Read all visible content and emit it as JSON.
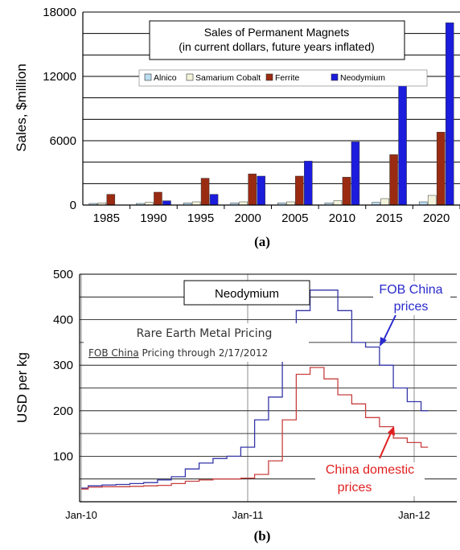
{
  "chart_data": [
    {
      "type": "bar",
      "title": "Sales of Permanent Magnets",
      "subtitle": "(in current dollars, future years inflated)",
      "ylabel": "Sales, $million",
      "xlabel": "",
      "caption": "(a)",
      "ylim": [
        0,
        18000
      ],
      "yticks": [
        "0",
        "6000",
        "12000",
        "18000"
      ],
      "categories": [
        "1985",
        "1990",
        "1995",
        "2000",
        "2005",
        "2010",
        "2015",
        "2020"
      ],
      "legend_position": "top",
      "grid": true,
      "series": [
        {
          "name": "Alnico",
          "color": "#bcdcf0",
          "values": [
            150,
            150,
            200,
            200,
            200,
            200,
            250,
            300
          ]
        },
        {
          "name": "Samarium Cobalt",
          "color": "#f4f4dc",
          "values": [
            200,
            250,
            300,
            300,
            300,
            400,
            600,
            900
          ]
        },
        {
          "name": "Ferrite",
          "color": "#9a2b12",
          "values": [
            1000,
            1200,
            2500,
            2900,
            2700,
            2600,
            4700,
            6800
          ]
        },
        {
          "name": "Neodymium",
          "color": "#1c1cdc",
          "values": [
            0,
            400,
            1000,
            2700,
            4100,
            5900,
            11800,
            17000
          ]
        }
      ]
    },
    {
      "type": "line",
      "caption": "(b)",
      "ylabel": "USD per kg",
      "ylim": [
        0,
        500
      ],
      "yticks": [
        "100",
        "200",
        "300",
        "400",
        "500"
      ],
      "xticks": [
        "Jan-10",
        "Jan-11",
        "Jan-12"
      ],
      "grid": true,
      "box_label": "Neodymium",
      "title": "Rare Earth Metal Pricing",
      "subtitle_link": "FOB China",
      "subtitle_rest": " Pricing through 2/17/2012",
      "series": [
        {
          "name_line1": "FOB China",
          "name_line2": "prices",
          "color": "#3535a8",
          "label_color": "#2a2acc",
          "x": [
            "2010-01",
            "2010-02",
            "2010-03",
            "2010-04",
            "2010-05",
            "2010-06",
            "2010-07",
            "2010-08",
            "2010-09",
            "2010-10",
            "2010-11",
            "2010-12",
            "2011-01",
            "2011-02",
            "2011-03",
            "2011-04",
            "2011-05",
            "2011-06",
            "2011-07",
            "2011-08",
            "2011-09",
            "2011-10",
            "2011-11",
            "2011-12",
            "2012-01",
            "2012-02"
          ],
          "y": [
            30,
            35,
            37,
            38,
            40,
            42,
            48,
            55,
            72,
            85,
            95,
            100,
            120,
            180,
            230,
            310,
            420,
            465,
            465,
            420,
            350,
            340,
            300,
            250,
            220,
            200
          ]
        },
        {
          "name_line1": "China domestic",
          "name_line2": "prices",
          "color": "#c84040",
          "label_color": "#e02020",
          "x": [
            "2010-01",
            "2010-02",
            "2010-03",
            "2010-04",
            "2010-05",
            "2010-06",
            "2010-07",
            "2010-08",
            "2010-09",
            "2010-10",
            "2010-11",
            "2010-12",
            "2011-01",
            "2011-02",
            "2011-03",
            "2011-04",
            "2011-05",
            "2011-06",
            "2011-07",
            "2011-08",
            "2011-09",
            "2011-10",
            "2011-11",
            "2011-12",
            "2012-01",
            "2012-02"
          ],
          "y": [
            28,
            32,
            33,
            33,
            34,
            35,
            36,
            40,
            45,
            48,
            50,
            50,
            52,
            60,
            90,
            180,
            280,
            295,
            270,
            235,
            215,
            185,
            165,
            140,
            130,
            120
          ]
        }
      ]
    }
  ]
}
